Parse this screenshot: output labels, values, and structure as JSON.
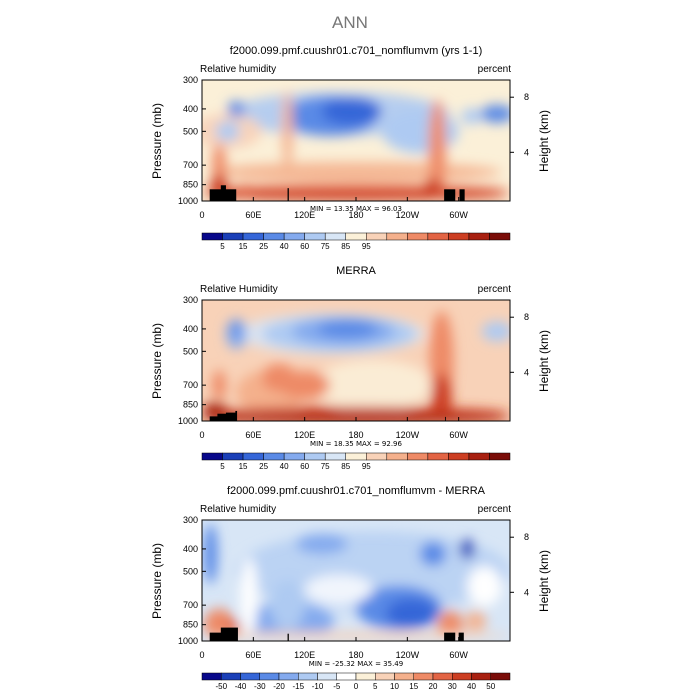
{
  "page": {
    "title": "ANN"
  },
  "panels": [
    {
      "title": "f2000.099.pmf.cuushr01.c701_nomflumvm (yrs 1-1)",
      "left_label": "Relative humidity",
      "right_label": "percent",
      "ylabel_left": "Pressure (mb)",
      "ylabel_right": "Height (km)",
      "minmax": "MIN =   13.35   MAX =   96.03",
      "colorbar_labels": [
        "5",
        "15",
        "25",
        "40",
        "60",
        "75",
        "85",
        "95"
      ]
    },
    {
      "title": "MERRA",
      "left_label": "Relative Humidity",
      "right_label": "percent",
      "ylabel_left": "Pressure (mb)",
      "ylabel_right": "Height (km)",
      "minmax": "MIN =   18.35   MAX =   92.96",
      "colorbar_labels": [
        "5",
        "15",
        "25",
        "40",
        "60",
        "75",
        "85",
        "95"
      ]
    },
    {
      "title": "f2000.099.pmf.cuushr01.c701_nomflumvm - MERRA",
      "left_label": "Relative humidity",
      "right_label": "percent",
      "ylabel_left": "Pressure (mb)",
      "ylabel_right": "Height (km)",
      "minmax": "MIN =  -25.32   MAX =   35.49",
      "colorbar_labels": [
        "-50",
        "-40",
        "-30",
        "-20",
        "-15",
        "-10",
        "-5",
        "0",
        "5",
        "10",
        "15",
        "20",
        "30",
        "40",
        "50"
      ]
    }
  ],
  "axes": {
    "y_ticks": [
      "300",
      "400",
      "500",
      "700",
      "850",
      "1000"
    ],
    "x_ticks": [
      "0",
      "60E",
      "120E",
      "180",
      "120W",
      "60W"
    ],
    "height_ticks": [
      "8",
      "4"
    ]
  },
  "colors": {
    "rh_scale": [
      "#08088a",
      "#1a3fb8",
      "#3566d8",
      "#5a8ae6",
      "#84aaee",
      "#aecaf2",
      "#d8e6f6",
      "#fbf0d8",
      "#f8d2b8",
      "#f4b08c",
      "#ee8a66",
      "#e26444",
      "#cc3e22",
      "#a82010",
      "#7a0c08"
    ],
    "diff_scale": [
      "#08088a",
      "#1a3fb8",
      "#3566d8",
      "#5a8ae6",
      "#84aaee",
      "#aecaf2",
      "#d8e6f6",
      "#ffffff",
      "#fbf0d8",
      "#f8d2b8",
      "#f4b08c",
      "#ee8a66",
      "#e26444",
      "#cc3e22",
      "#a82010",
      "#7a0c08"
    ]
  },
  "chart_data": [
    {
      "type": "heatmap",
      "title": "f2000.099.pmf.cuushr01.c701_nomflumvm (yrs 1-1)",
      "variable": "Relative humidity",
      "units": "percent",
      "x": [
        "0",
        "60E",
        "120E",
        "180",
        "120W",
        "60W"
      ],
      "y": [
        300,
        400,
        500,
        700,
        850,
        1000
      ],
      "xlabel": "",
      "ylabel": "Pressure (mb)",
      "min": 13.35,
      "max": 96.03,
      "levels": [
        5,
        15,
        25,
        40,
        60,
        75,
        85,
        95
      ],
      "features": [
        "dry minimum ~15-25% near 180-120W at 400-500 mb",
        "dry pocket near 40E at 400 mb",
        "moist band >85% near 900-1000 mb",
        "moist columns near 20E, 100-140E and 80W"
      ]
    },
    {
      "type": "heatmap",
      "title": "MERRA",
      "variable": "Relative Humidity",
      "units": "percent",
      "x": [
        "0",
        "60E",
        "120E",
        "180",
        "120W",
        "60W"
      ],
      "y": [
        300,
        400,
        500,
        700,
        850,
        1000
      ],
      "xlabel": "",
      "ylabel": "Pressure (mb)",
      "min": 18.35,
      "max": 92.96,
      "levels": [
        5,
        15,
        25,
        40,
        60,
        75,
        85,
        95
      ],
      "features": [
        "dry minimum ~25% near 150W-120W at 400 mb",
        "moist band ~85% near 900-1000 mb",
        "moist column near 80W"
      ]
    },
    {
      "type": "heatmap",
      "title": "f2000.099.pmf.cuushr01.c701_nomflumvm - MERRA",
      "variable": "Relative humidity",
      "units": "percent",
      "x": [
        "0",
        "60E",
        "120E",
        "180",
        "120W",
        "60W"
      ],
      "y": [
        300,
        400,
        500,
        700,
        850,
        1000
      ],
      "xlabel": "",
      "ylabel": "Pressure (mb)",
      "min": -25.32,
      "max": 35.49,
      "levels": [
        -50,
        -40,
        -30,
        -20,
        -15,
        -10,
        -5,
        0,
        5,
        10,
        15,
        20,
        30,
        40,
        50
      ],
      "features": [
        "negative bias over most of domain",
        "strong negative near 120W at 700 mb",
        "positive bias near 15E-40E at 850 mb and near 80W"
      ]
    }
  ]
}
